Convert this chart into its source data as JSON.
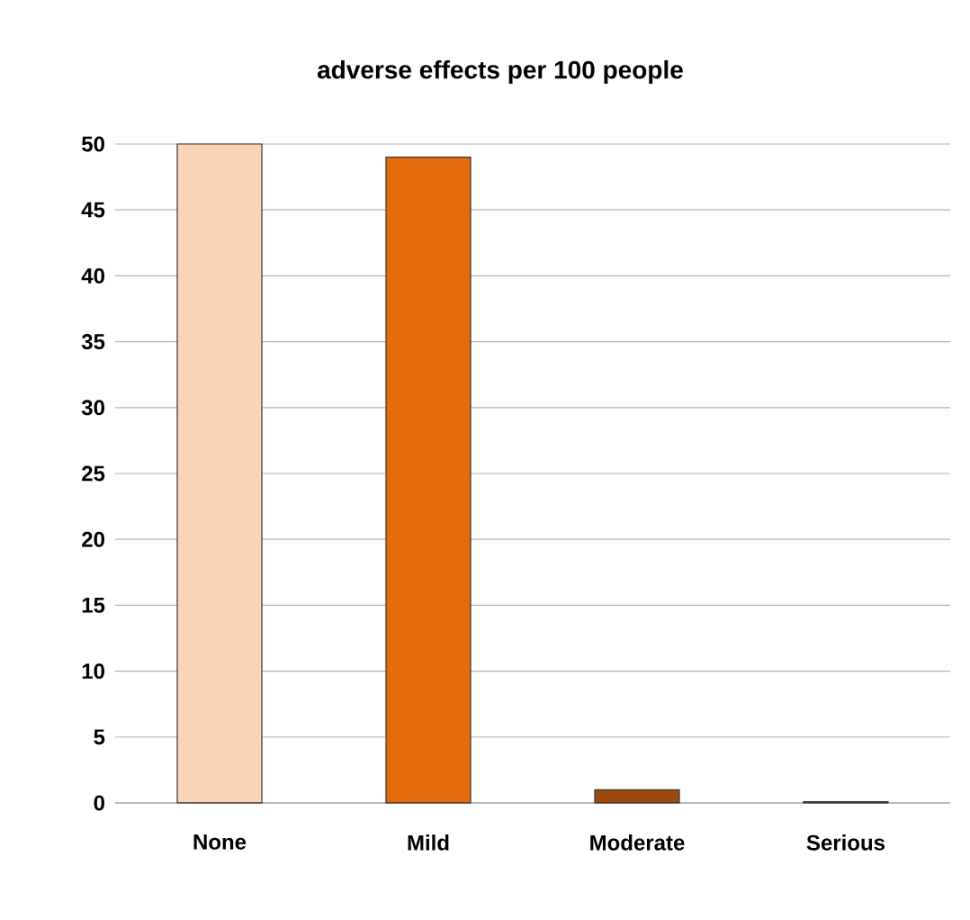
{
  "chart_data": {
    "type": "bar",
    "title": "adverse effects per 100 people",
    "categories": [
      "None",
      "Mild",
      "Moderate",
      "Serious"
    ],
    "values": [
      50,
      49,
      1,
      0.1
    ],
    "colors": [
      "#fad4b4",
      "#e46c0a",
      "#9c4a0b",
      "#7f3f0b"
    ],
    "ylim": [
      0,
      50
    ],
    "yticks": [
      0,
      5,
      10,
      15,
      20,
      25,
      30,
      35,
      40,
      45,
      50
    ],
    "grid": "y"
  }
}
